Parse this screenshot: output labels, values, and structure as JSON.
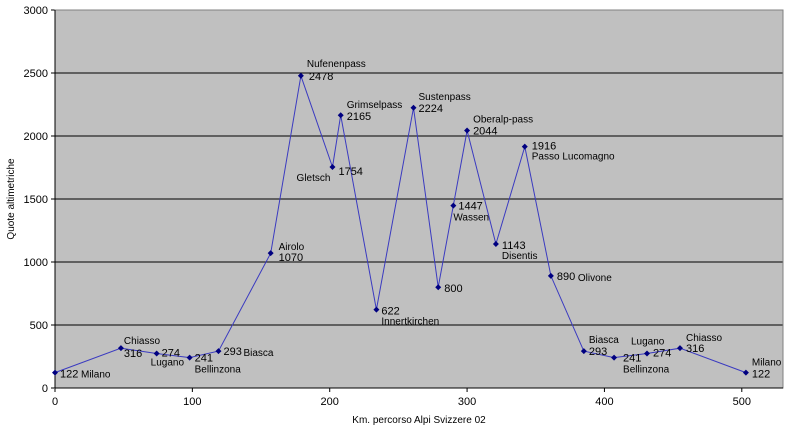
{
  "chart_data": {
    "type": "line",
    "title": "",
    "xlabel": "Km. percorso Alpi Svizzere 02",
    "ylabel": "Quote altimetriche",
    "xlim": [
      0,
      530
    ],
    "ylim": [
      0,
      3000
    ],
    "xticks": [
      0,
      100,
      200,
      300,
      400,
      500
    ],
    "yticks": [
      0,
      500,
      1000,
      1500,
      2000,
      2500,
      3000
    ],
    "grid": "horizontal",
    "legend": "none",
    "colors": {
      "plot_background": "#c0c0c0",
      "line": "#3a3ac0",
      "marker": "#000080",
      "grid": "#000000"
    },
    "series": [
      {
        "points": [
          {
            "x": 0,
            "y": 122,
            "label": "122",
            "name": "Milano"
          },
          {
            "x": 48,
            "y": 316,
            "label": "316",
            "name": "Chiasso"
          },
          {
            "x": 74,
            "y": 274,
            "label": "274",
            "name": "Lugano"
          },
          {
            "x": 98,
            "y": 241,
            "label": "241",
            "name": "Bellinzona"
          },
          {
            "x": 119,
            "y": 293,
            "label": "293",
            "name": "Biasca"
          },
          {
            "x": 157,
            "y": 1070,
            "label": "1070",
            "name": "Airolo"
          },
          {
            "x": 179,
            "y": 2478,
            "label": "2478",
            "name": "Nufenenpass"
          },
          {
            "x": 202,
            "y": 1754,
            "label": "1754",
            "name": "Gletsch"
          },
          {
            "x": 208,
            "y": 2165,
            "label": "2165",
            "name": "Grimselpass"
          },
          {
            "x": 234,
            "y": 622,
            "label": "622",
            "name": "Innertkirchen"
          },
          {
            "x": 261,
            "y": 2224,
            "label": "2224",
            "name": "Sustenpass"
          },
          {
            "x": 279,
            "y": 800,
            "label": "800",
            "name": ""
          },
          {
            "x": 290,
            "y": 1447,
            "label": "1447",
            "name": "Wassen"
          },
          {
            "x": 300,
            "y": 2044,
            "label": "2044",
            "name": "Oberalp-pass"
          },
          {
            "x": 321,
            "y": 1143,
            "label": "1143",
            "name": "Disentis"
          },
          {
            "x": 342,
            "y": 1916,
            "label": "1916",
            "name": "Passo Lucomagno"
          },
          {
            "x": 361,
            "y": 890,
            "label": "890",
            "name": "Olivone"
          },
          {
            "x": 385,
            "y": 293,
            "label": "293",
            "name": "Biasca"
          },
          {
            "x": 407,
            "y": 241,
            "label": "241",
            "name": "Bellinzona"
          },
          {
            "x": 431,
            "y": 274,
            "label": "274",
            "name": "Lugano"
          },
          {
            "x": 455,
            "y": 316,
            "label": "316",
            "name": "Chiasso"
          },
          {
            "x": 503,
            "y": 122,
            "label": "122",
            "name": "Milano"
          }
        ]
      }
    ]
  }
}
